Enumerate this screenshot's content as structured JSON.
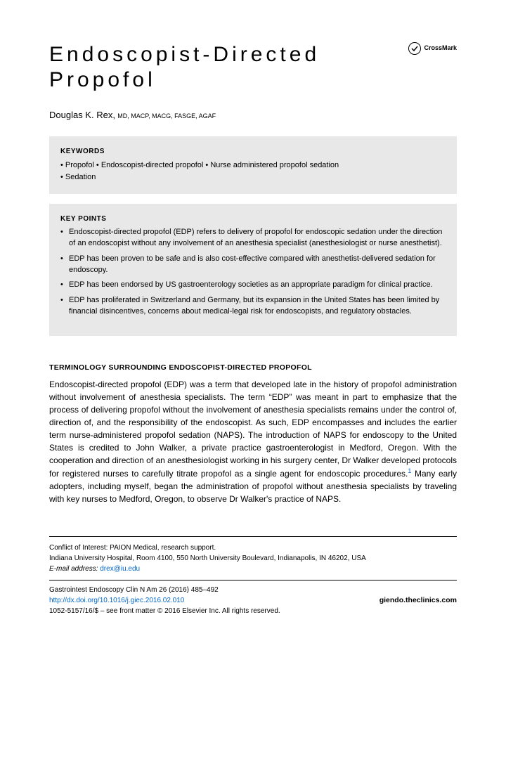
{
  "title_line1": "Endoscopist-Directed",
  "title_line2": "Propofol",
  "crossmark_label": "CrossMark",
  "author": {
    "name": "Douglas K. Rex,",
    "credentials": "MD, MACP, MACG, FASGE, AGAF"
  },
  "keywords": {
    "label": "KEYWORDS",
    "items": [
      "Propofol",
      "Endoscopist-directed propofol",
      "Nurse administered propofol sedation",
      "Sedation"
    ]
  },
  "keypoints": {
    "label": "KEY POINTS",
    "items": [
      "Endoscopist-directed propofol (EDP) refers to delivery of propofol for endoscopic sedation under the direction of an endoscopist without any involvement of an anesthesia specialist (anesthesiologist or nurse anesthetist).",
      "EDP has been proven to be safe and is also cost-effective compared with anesthetist-delivered sedation for endoscopy.",
      "EDP has been endorsed by US gastroenterology societies as an appropriate paradigm for clinical practice.",
      "EDP has proliferated in Switzerland and Germany, but its expansion in the United States has been limited by financial disincentives, concerns about medical-legal risk for endoscopists, and regulatory obstacles."
    ]
  },
  "body": {
    "heading": "TERMINOLOGY SURROUNDING ENDOSCOPIST-DIRECTED PROPOFOL",
    "text_before_ref": "Endoscopist-directed propofol (EDP) was a term that developed late in the history of propofol administration without involvement of anesthesia specialists. The term “EDP” was meant in part to emphasize that the process of delivering propofol without the involvement of anesthesia specialists remains under the control of, direction of, and the responsibility of the endoscopist. As such, EDP encompasses and includes the earlier term nurse-administered propofol sedation (NAPS). The introduction of NAPS for endoscopy to the United States is credited to John Walker, a private practice gastroenterologist in Medford, Oregon. With the cooperation and direction of an anesthesiologist working in his surgery center, Dr Walker developed protocols for registered nurses to carefully titrate propofol as a single agent for endoscopic procedures.",
    "ref_num": "1",
    "text_after_ref": " Many early adopters, including myself, began the administration of propofol without anesthesia specialists by traveling with key nurses to Medford, Oregon, to observe Dr Walker's practice of NAPS."
  },
  "footer": {
    "conflict": "Conflict of Interest: PAION Medical, research support.",
    "address": "Indiana University Hospital, Room 4100, 550 North University Boulevard, Indianapolis, IN 46202, USA",
    "email_label": "E-mail address:",
    "email": "drex@iu.edu",
    "journal_line": "Gastrointest Endoscopy Clin N Am 26 (2016) 485–492",
    "doi": "http://dx.doi.org/10.1016/j.giec.2016.02.010",
    "issn_line": "1052-5157/16/$ – see front matter © 2016 Elsevier Inc. All rights reserved.",
    "site": "giendo.theclinics.com"
  },
  "colors": {
    "gray_box": "#e8e8e8",
    "link": "#0066cc",
    "text": "#000000",
    "bg": "#ffffff"
  }
}
